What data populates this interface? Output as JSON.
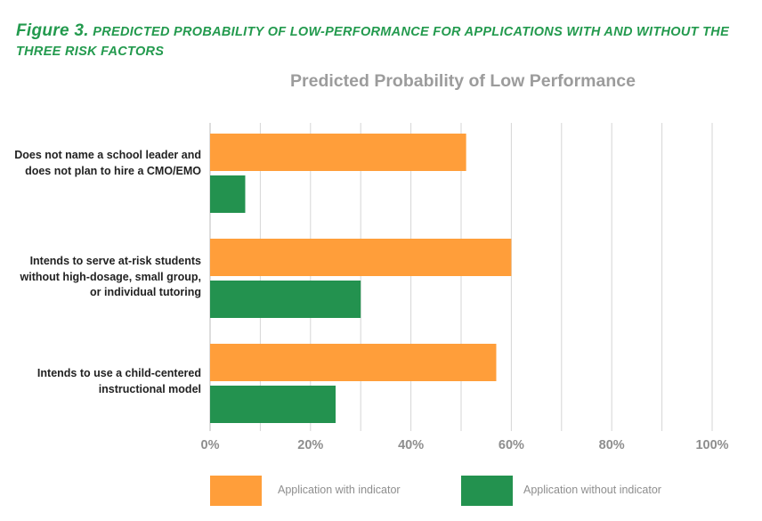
{
  "figure": {
    "number_label": "Figure 3.",
    "caption": "predicted probability of low-performance for applications with and without the three risk factors"
  },
  "colors": {
    "with": "#ff9e3a",
    "without": "#23924f",
    "grid": "#d6d6d6"
  },
  "chart_data": {
    "type": "bar",
    "orientation": "horizontal",
    "title": "Predicted Probability of Low Performance",
    "categories": [
      "Does not name a school leader and does not plan to hire a CMO/EMO",
      "Intends to serve at-risk students without high-dosage, small group, or individual tutoring",
      "Intends to use a child-centered instructional model"
    ],
    "series": [
      {
        "name": "Application with indicator",
        "values": [
          51,
          60,
          57
        ]
      },
      {
        "name": "Application without indicator",
        "values": [
          7,
          30,
          25
        ]
      }
    ],
    "xlim": [
      0,
      100
    ],
    "xticks": [
      0,
      20,
      40,
      60,
      80,
      100
    ],
    "xtick_labels": [
      "0%",
      "20%",
      "40%",
      "60%",
      "80%",
      "100%"
    ],
    "xlabel": "",
    "ylabel": "",
    "grid": true,
    "legend_position": "bottom"
  }
}
